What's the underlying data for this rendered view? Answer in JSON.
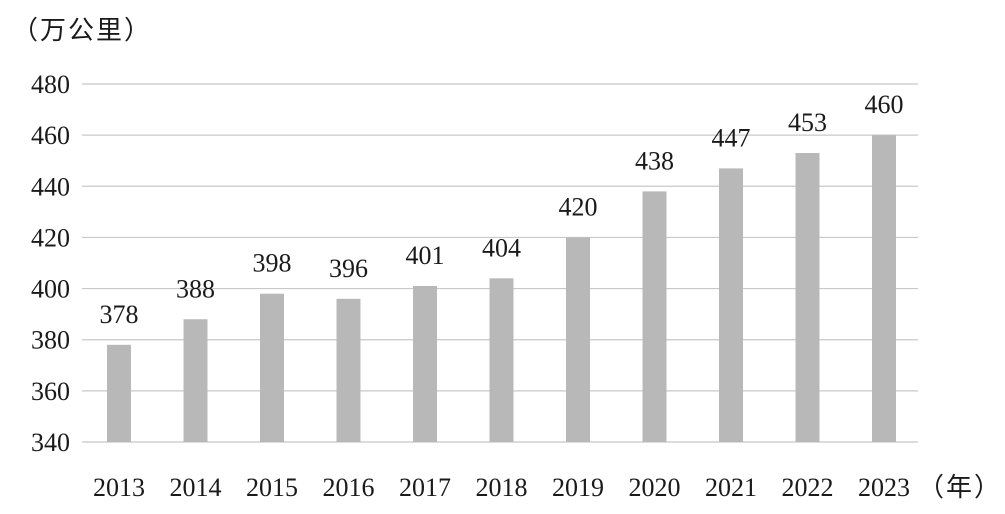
{
  "chart_data": {
    "type": "bar",
    "y_unit": "（万公里）",
    "x_unit": "（年）",
    "categories": [
      "2013",
      "2014",
      "2015",
      "2016",
      "2017",
      "2018",
      "2019",
      "2020",
      "2021",
      "2022",
      "2023"
    ],
    "values": [
      378,
      388,
      398,
      396,
      401,
      404,
      420,
      438,
      447,
      453,
      460
    ],
    "ylim": [
      340,
      480
    ],
    "yticks": [
      340,
      360,
      380,
      400,
      420,
      440,
      460,
      480
    ],
    "grid": true,
    "bar_color": "#b8b8b8",
    "grid_color": "#c8c8c8"
  }
}
